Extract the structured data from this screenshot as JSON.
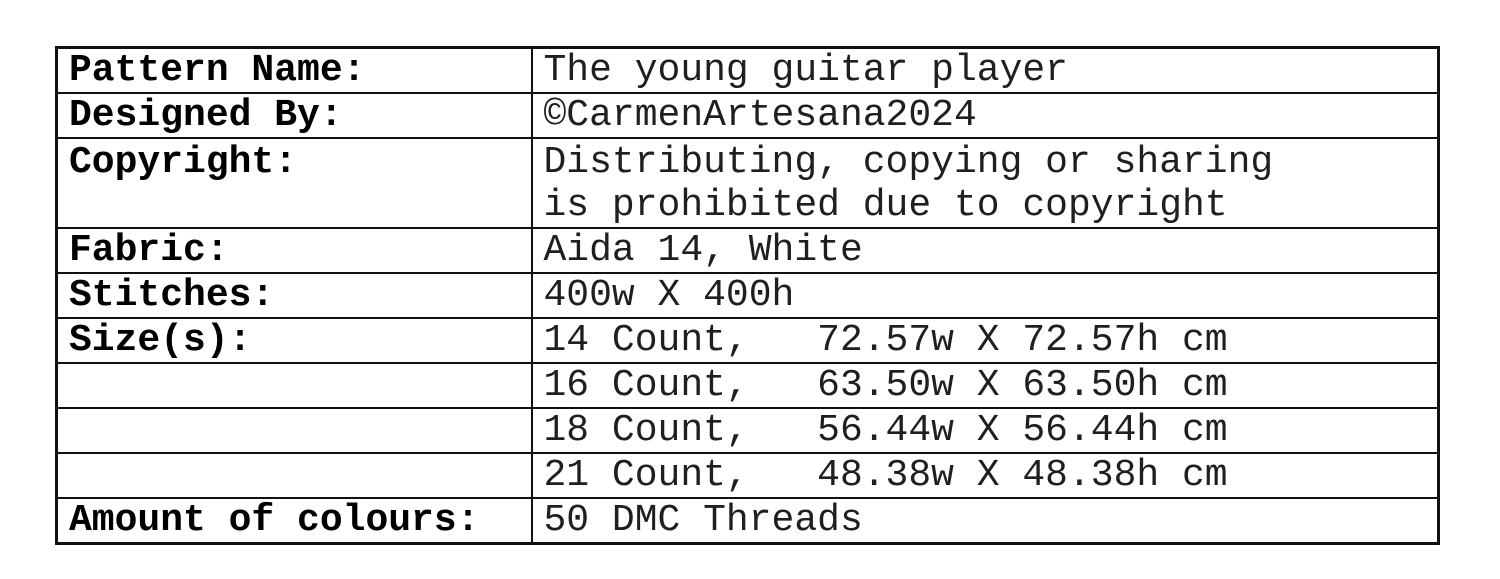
{
  "colors": {
    "background": "#ffffff",
    "border": "#111111",
    "label_text": "#000000",
    "value_text": "#1f1f1f"
  },
  "table": {
    "rows": [
      {
        "label": "Pattern Name:",
        "value": "The young guitar player"
      },
      {
        "label": "Designed By:",
        "value": "©CarmenArtesana2024"
      },
      {
        "label": "Copyright:",
        "value": "Distributing, copying or sharing\nis prohibited due to copyright"
      },
      {
        "label": "Fabric:",
        "value": "Aida 14, White"
      },
      {
        "label": "Stitches:",
        "value": "400w X 400h"
      },
      {
        "label": "Size(s):",
        "value": "14 Count,   72.57w X 72.57h cm"
      },
      {
        "label": "",
        "value": "16 Count,   63.50w X 63.50h cm"
      },
      {
        "label": "",
        "value": "18 Count,   56.44w X 56.44h cm"
      },
      {
        "label": "",
        "value": "21 Count,   48.38w X 48.38h cm"
      },
      {
        "label": "Amount of colours:",
        "value": "50 DMC Threads"
      }
    ]
  }
}
